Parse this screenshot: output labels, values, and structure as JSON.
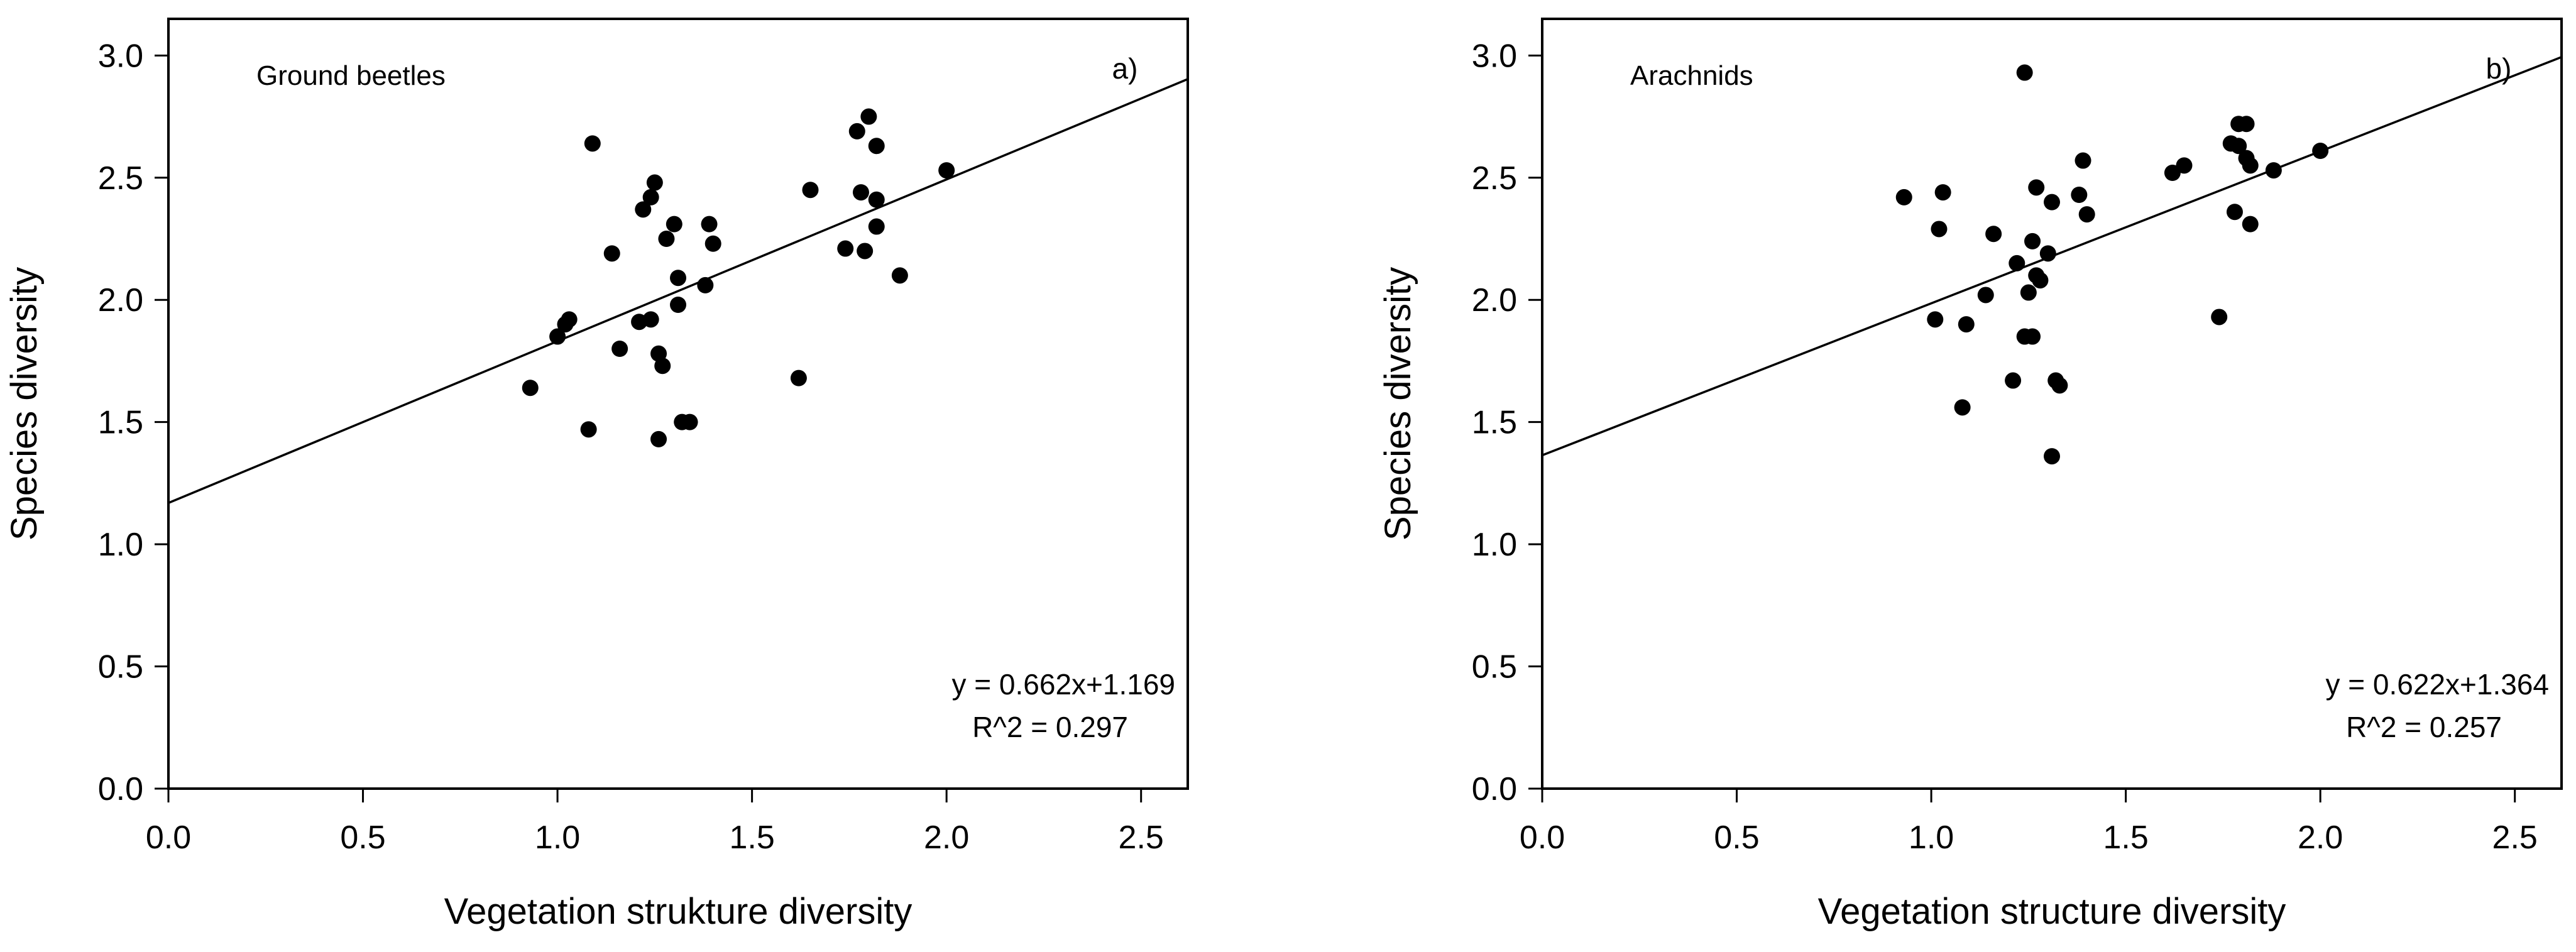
{
  "chart_data": [
    {
      "type": "scatter",
      "title": "Ground beetles",
      "panel_label": "a)",
      "xlabel": "Vegetation strukture diversity",
      "ylabel": "Species diversity",
      "xlim": [
        0,
        2.62
      ],
      "ylim": [
        0,
        3.15
      ],
      "xticks": [
        "0.0",
        "0.5",
        "1.0",
        "1.5",
        "2.0",
        "2.5"
      ],
      "yticks": [
        "0.0",
        "0.5",
        "1.0",
        "1.5",
        "2.0",
        "2.5",
        "3.0"
      ],
      "grid": false,
      "regression": {
        "slope": 0.662,
        "intercept": 1.169
      },
      "equation_label": "y = 0.662x+1.169",
      "r2_label": "R^2 = 0.297",
      "points": [
        [
          0.93,
          1.64
        ],
        [
          1.0,
          1.85
        ],
        [
          1.02,
          1.9
        ],
        [
          1.03,
          1.92
        ],
        [
          1.08,
          1.47
        ],
        [
          1.09,
          2.64
        ],
        [
          1.14,
          2.19
        ],
        [
          1.16,
          1.8
        ],
        [
          1.21,
          1.91
        ],
        [
          1.22,
          2.37
        ],
        [
          1.24,
          2.42
        ],
        [
          1.24,
          1.92
        ],
        [
          1.25,
          2.48
        ],
        [
          1.26,
          1.43
        ],
        [
          1.26,
          1.78
        ],
        [
          1.27,
          1.73
        ],
        [
          1.28,
          2.25
        ],
        [
          1.3,
          2.31
        ],
        [
          1.31,
          2.09
        ],
        [
          1.31,
          1.98
        ],
        [
          1.32,
          1.5
        ],
        [
          1.34,
          1.5
        ],
        [
          1.38,
          2.06
        ],
        [
          1.39,
          2.31
        ],
        [
          1.4,
          2.23
        ],
        [
          1.62,
          1.68
        ],
        [
          1.65,
          2.45
        ],
        [
          1.74,
          2.21
        ],
        [
          1.77,
          2.69
        ],
        [
          1.78,
          2.44
        ],
        [
          1.79,
          2.2
        ],
        [
          1.8,
          2.75
        ],
        [
          1.82,
          2.41
        ],
        [
          1.82,
          2.3
        ],
        [
          1.82,
          2.63
        ],
        [
          1.88,
          2.1
        ],
        [
          2.0,
          2.53
        ]
      ]
    },
    {
      "type": "scatter",
      "title": "Arachnids",
      "panel_label": "b)",
      "xlabel": "Vegetation structure diversity",
      "ylabel": "Species diversity",
      "xlim": [
        0,
        2.62
      ],
      "ylim": [
        0,
        3.15
      ],
      "xticks": [
        "0.0",
        "0.5",
        "1.0",
        "1.5",
        "2.0",
        "2.5"
      ],
      "yticks": [
        "0.0",
        "0.5",
        "1.0",
        "1.5",
        "2.0",
        "2.5",
        "3.0"
      ],
      "grid": false,
      "regression": {
        "slope": 0.622,
        "intercept": 1.364
      },
      "equation_label": "y = 0.622x+1.364",
      "r2_label": "R^2 = 0.257",
      "points": [
        [
          0.93,
          2.42
        ],
        [
          1.01,
          1.92
        ],
        [
          1.02,
          2.29
        ],
        [
          1.03,
          2.44
        ],
        [
          1.08,
          1.56
        ],
        [
          1.09,
          1.9
        ],
        [
          1.14,
          2.02
        ],
        [
          1.16,
          2.27
        ],
        [
          1.21,
          1.67
        ],
        [
          1.22,
          2.15
        ],
        [
          1.24,
          2.93
        ],
        [
          1.24,
          1.85
        ],
        [
          1.25,
          2.03
        ],
        [
          1.26,
          2.24
        ],
        [
          1.26,
          1.85
        ],
        [
          1.27,
          2.46
        ],
        [
          1.27,
          2.1
        ],
        [
          1.28,
          2.08
        ],
        [
          1.3,
          2.19
        ],
        [
          1.31,
          1.36
        ],
        [
          1.31,
          2.4
        ],
        [
          1.32,
          1.67
        ],
        [
          1.33,
          1.65
        ],
        [
          1.38,
          2.43
        ],
        [
          1.39,
          2.57
        ],
        [
          1.4,
          2.35
        ],
        [
          1.62,
          2.52
        ],
        [
          1.65,
          2.55
        ],
        [
          1.74,
          1.93
        ],
        [
          1.77,
          2.64
        ],
        [
          1.78,
          2.36
        ],
        [
          1.79,
          2.72
        ],
        [
          1.79,
          2.63
        ],
        [
          1.81,
          2.58
        ],
        [
          1.81,
          2.72
        ],
        [
          1.82,
          2.55
        ],
        [
          1.82,
          2.31
        ],
        [
          1.88,
          2.53
        ],
        [
          2.0,
          2.61
        ]
      ]
    }
  ]
}
